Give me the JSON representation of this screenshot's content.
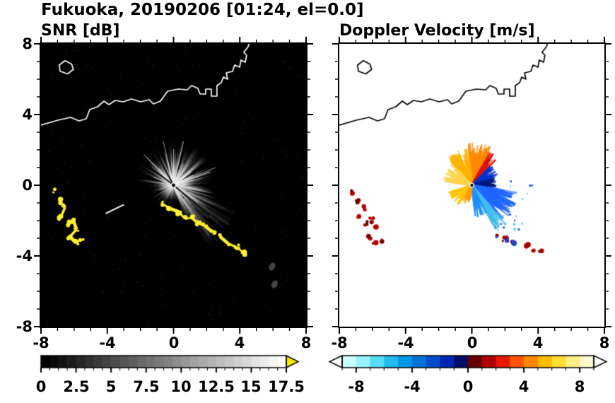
{
  "figure": {
    "title": "Fukuoka, 20190206 [01:24, el=0.0]"
  },
  "axes": {
    "xtick_labels": [
      "-8",
      "-4",
      "0",
      "4",
      "8"
    ],
    "ytick_labels": [
      "8",
      "4",
      "0",
      "-4",
      "-8"
    ]
  },
  "map_outline": {
    "mainland": [
      [
        -8,
        3.4
      ],
      [
        -6.98,
        3.68
      ],
      [
        -6.21,
        3.84
      ],
      [
        -5.7,
        3.64
      ],
      [
        -5.27,
        3.76
      ],
      [
        -5.06,
        4.28
      ],
      [
        -4.59,
        4.44
      ],
      [
        -4.2,
        4.76
      ],
      [
        -3.9,
        4.56
      ],
      [
        -3.52,
        4.8
      ],
      [
        -3.05,
        4.72
      ],
      [
        -2.54,
        4.88
      ],
      [
        -1.98,
        4.72
      ],
      [
        -1.47,
        4.84
      ],
      [
        -1.22,
        4.6
      ],
      [
        -0.79,
        4.76
      ],
      [
        -0.36,
        5.32
      ],
      [
        0.28,
        5.44
      ],
      [
        0.83,
        5.4
      ],
      [
        1.09,
        5.64
      ],
      [
        1.47,
        5.48
      ],
      [
        1.6,
        5.16
      ],
      [
        1.94,
        5.16
      ],
      [
        1.94,
        5.44
      ],
      [
        2.28,
        5.44
      ],
      [
        2.28,
        5.04
      ],
      [
        2.62,
        5.04
      ],
      [
        2.62,
        5.64
      ],
      [
        2.88,
        5.8
      ],
      [
        3.01,
        6.12
      ],
      [
        3.26,
        6.0
      ],
      [
        3.18,
        6.36
      ],
      [
        3.56,
        6.44
      ],
      [
        3.69,
        6.8
      ],
      [
        3.99,
        6.68
      ],
      [
        4.07,
        7.08
      ],
      [
        4.33,
        6.96
      ],
      [
        4.41,
        7.36
      ],
      [
        4.24,
        7.52
      ],
      [
        4.5,
        7.84
      ],
      [
        4.6,
        8.1
      ]
    ],
    "island": [
      [
        -6.9,
        6.8
      ],
      [
        -6.55,
        7.05
      ],
      [
        -6.15,
        6.85
      ],
      [
        -6.05,
        6.55
      ],
      [
        -6.4,
        6.3
      ],
      [
        -6.85,
        6.45
      ]
    ]
  },
  "chart_data": [
    {
      "type": "radar_ppi",
      "title": "SNR [dB]",
      "xlim": [
        -8,
        8
      ],
      "ylim": [
        -8,
        8
      ],
      "xticks": [
        -8,
        -4,
        0,
        4,
        8
      ],
      "yticks": [
        -8,
        -4,
        0,
        4,
        8
      ],
      "minor_tick_step": 1,
      "background": "#000000",
      "radar_center": [
        0,
        0
      ],
      "colorbar": {
        "min": 0,
        "max": 17.5,
        "tick_values": [
          0,
          2.5,
          5,
          7.5,
          10,
          12.5,
          15,
          17.5
        ],
        "tick_labels": [
          "0",
          "2.5",
          "5",
          "7.5",
          "10",
          "12.5",
          "15",
          "17.5"
        ],
        "minor_tick_step": 0.625,
        "segments": 28,
        "scale": "grayscale",
        "start_color": "#000000",
        "end_color": "#ffffff",
        "overflow_color": "#ffe600"
      },
      "echo": {
        "description": "Grey radial ground-echo fan centred on radar at (0,0); yellow high-SNR coastal clutter arcs; white coastline on black background.",
        "beam_sectors": [
          {
            "angle_deg": [
              -70,
              115
            ],
            "rays": 170,
            "max_radius": 2.8,
            "brightness": "high"
          },
          {
            "angle_deg": [
              115,
              175
            ],
            "rays": 60,
            "max_radius": 2.4,
            "brightness": "medium"
          },
          {
            "angle_deg": [
              175,
              268
            ],
            "rays": 45,
            "max_radius": 1.6,
            "brightness": "low"
          }
        ],
        "dim_wedge": {
          "angle_deg": [
            -62,
            -22
          ],
          "radius": [
            1.0,
            4.3
          ]
        },
        "gap_ray_angles": [
          118,
          142,
          -40
        ],
        "streaks": [
          {
            "from": [
              -4.1,
              -1.6
            ],
            "to": [
              -3.0,
              -1.1
            ]
          }
        ],
        "faint_patches": [
          [
            5.95,
            -4.6
          ],
          [
            6.1,
            -5.6
          ]
        ],
        "clutter_color": "#ffee33",
        "clutter_arcs": [
          [
            [
              -7.15,
              -0.35
            ],
            [
              -6.9,
              -0.9
            ],
            [
              -6.55,
              -1.25
            ],
            [
              -6.8,
              -1.8
            ],
            [
              -6.4,
              -2.15
            ],
            [
              -6.05,
              -2.0
            ],
            [
              -5.85,
              -2.5
            ],
            [
              -6.25,
              -2.9
            ],
            [
              -5.9,
              -3.25
            ],
            [
              -5.55,
              -3.05
            ]
          ],
          [
            [
              -0.75,
              -1.0
            ],
            [
              -0.25,
              -1.3
            ],
            [
              0.3,
              -1.5
            ],
            [
              0.7,
              -1.9
            ],
            [
              1.1,
              -1.85
            ],
            [
              1.5,
              -2.15
            ],
            [
              1.9,
              -2.3
            ],
            [
              2.35,
              -2.65
            ],
            [
              2.8,
              -2.9
            ],
            [
              3.3,
              -3.3
            ],
            [
              3.8,
              -3.5
            ],
            [
              4.2,
              -3.8
            ]
          ]
        ]
      }
    },
    {
      "type": "radar_ppi",
      "title": "Doppler Velocity [m/s]",
      "xlim": [
        -8,
        8
      ],
      "ylim": [
        -8,
        8
      ],
      "xticks": [
        -8,
        -4,
        0,
        4,
        8
      ],
      "yticks": [
        -8,
        -4,
        0,
        4,
        8
      ],
      "minor_tick_step": 1,
      "background": "#ffffff",
      "radar_center": [
        0,
        0
      ],
      "colorbar": {
        "min": -9,
        "max": 9,
        "tick_values": [
          -8,
          -4,
          0,
          4,
          8
        ],
        "tick_labels": [
          "-8",
          "-4",
          "0",
          "4",
          "8"
        ],
        "minor_tick_step": 1,
        "segment_colors": [
          "#ccffff",
          "#99f2ff",
          "#55ddf5",
          "#22bbee",
          "#0099e6",
          "#0073d9",
          "#004dcc",
          "#0026b3",
          "#000d66",
          "#660000",
          "#b30000",
          "#e61a00",
          "#ff5500",
          "#ff8800",
          "#ffbb00",
          "#ffdd33",
          "#ffee88",
          "#fff8cc"
        ],
        "under_color": "#ffffff",
        "over_color": "#ffffff"
      },
      "echo": {
        "description": "Doppler velocity fan: positive velocities (orange/yellow) above and left of the radar, negative velocities (blue/cyan) to the right and lower right, dark-red clutter patches along the coast echoes.",
        "velocity_sectors": [
          {
            "angle_deg": [
              62,
              95
            ],
            "max_radius": 2.6,
            "color": "#ff8800",
            "rays": 70
          },
          {
            "angle_deg": [
              95,
              132
            ],
            "max_radius": 2.3,
            "color": "#ffb300",
            "rays": 60
          },
          {
            "angle_deg": [
              132,
              172
            ],
            "max_radius": 1.8,
            "color": "#ffd34d",
            "rays": 45
          },
          {
            "angle_deg": [
              46,
              62
            ],
            "max_radius": 2.3,
            "color": "#dd1100",
            "rays": 35
          },
          {
            "angle_deg": [
              18,
              46
            ],
            "max_radius": 1.7,
            "color": "#0033cc",
            "rays": 40
          },
          {
            "angle_deg": [
              -8,
              18
            ],
            "max_radius": 1.5,
            "color": "#001a80",
            "rays": 35
          },
          {
            "angle_deg": [
              -48,
              -8
            ],
            "max_radius": 2.9,
            "color": "#2266ff",
            "rays": 80
          },
          {
            "angle_deg": [
              -62,
              -48
            ],
            "max_radius": 3.3,
            "color": "#44bbee",
            "rays": 35
          },
          {
            "angle_deg": [
              -85,
              -62
            ],
            "max_radius": 2.0,
            "color": "#1e90ff",
            "rays": 28
          },
          {
            "angle_deg": [
              196,
              238
            ],
            "max_radius": 1.5,
            "color": "#ffc400",
            "rays": 40
          },
          {
            "angle_deg": [
              238,
              264
            ],
            "max_radius": 1.2,
            "color": "#ff9900",
            "rays": 22
          }
        ],
        "clutter_patches": [
          {
            "color": "#bb0000",
            "color2": "#770000",
            "mix": 0.35,
            "points": [
              [
                -7.15,
                -0.35
              ],
              [
                -6.9,
                -0.9
              ],
              [
                -6.55,
                -1.25
              ],
              [
                -6.8,
                -1.8
              ],
              [
                -6.4,
                -2.15
              ],
              [
                -6.05,
                -2.0
              ],
              [
                -5.85,
                -2.5
              ],
              [
                -6.25,
                -2.9
              ],
              [
                -5.9,
                -3.25
              ],
              [
                -5.55,
                -3.05
              ]
            ]
          },
          {
            "color": "#aa0000",
            "color2": "#2244cc",
            "mix": 0.45,
            "points": [
              [
                1.5,
                -2.9
              ],
              [
                2.0,
                -3.1
              ],
              [
                2.5,
                -3.3
              ],
              [
                3.3,
                -3.4
              ],
              [
                3.8,
                -3.6
              ],
              [
                4.2,
                -3.85
              ]
            ]
          }
        ]
      }
    }
  ]
}
